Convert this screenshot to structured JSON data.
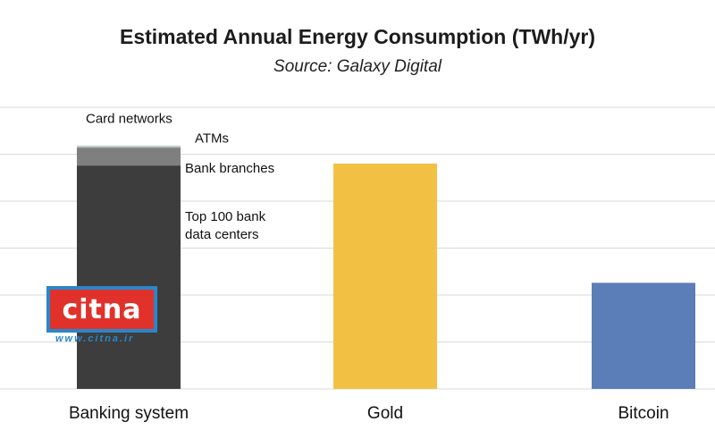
{
  "header": {
    "title": "Estimated Annual Energy Consumption (TWh/yr)",
    "subtitle": "Source: Galaxy Digital"
  },
  "watermark": {
    "brand": "citna",
    "url": "www.citna.ir"
  },
  "colors": {
    "bank_data_centers": "#3d3d3d",
    "bank_branches": "#7f7f7f",
    "atms": "#b8b8b8",
    "card_networks": "#d4e6e0",
    "gold": "#f2c144",
    "bitcoin": "#5b7db8",
    "grid": "#d9d9d9"
  },
  "chart_data": {
    "type": "bar",
    "stacked": true,
    "title": "Estimated Annual Energy Consumption (TWh/yr)",
    "subtitle": "Source: Galaxy Digital",
    "xlabel": "",
    "ylabel": "",
    "ylim": [
      0,
      300
    ],
    "grid": true,
    "y_tick_labels_shown": false,
    "categories": [
      "Banking system",
      "Gold",
      "Bitcoin"
    ],
    "series": [
      {
        "name": "Top 100 bank data centers",
        "values": [
          238,
          0,
          0
        ],
        "color_key": "bank_data_centers"
      },
      {
        "name": "Bank branches",
        "values": [
          19,
          0,
          0
        ],
        "color_key": "bank_branches"
      },
      {
        "name": "ATMs",
        "values": [
          2,
          0,
          0
        ],
        "color_key": "atms"
      },
      {
        "name": "Card networks",
        "values": [
          0.5,
          0,
          0
        ],
        "color_key": "card_networks"
      },
      {
        "name": "Gold",
        "values": [
          0,
          240,
          0
        ],
        "color_key": "gold"
      },
      {
        "name": "Bitcoin",
        "values": [
          0,
          0,
          113
        ],
        "color_key": "bitcoin"
      }
    ],
    "annotations": [
      {
        "text": "Card networks",
        "series": "Card networks"
      },
      {
        "text": "ATMs",
        "series": "ATMs"
      },
      {
        "text": "Bank branches",
        "series": "Bank branches"
      },
      {
        "text": "Top 100 bank\ndata centers",
        "series": "Top 100 bank data centers"
      }
    ]
  }
}
